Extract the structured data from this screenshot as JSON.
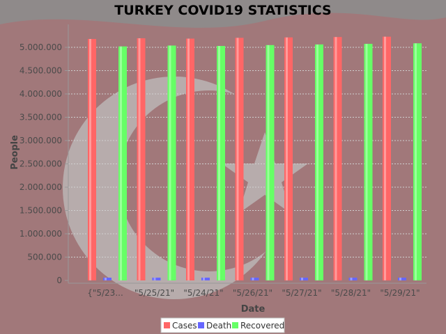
{
  "chart_data": {
    "type": "bar",
    "title": "TURKEY COVID19 STATISTICS",
    "xlabel": "Date",
    "ylabel": "People",
    "ylim": [
      0,
      5000000
    ],
    "yticks": [
      "0",
      "500.000",
      "1.000.000",
      "1.500.000",
      "2.000.000",
      "2.500.000",
      "3.000.000",
      "3.500.000",
      "4.000.000",
      "4.500.000",
      "5.000.000"
    ],
    "categories": [
      "{\"5/23...",
      "\"5/25/21\"",
      "\"5/24/21\"",
      "\"5/26/21\"",
      "\"5/27/21\"",
      "\"5/28/21\"",
      "\"5/29/21\""
    ],
    "grid": true,
    "legend_position": "bottom",
    "series": [
      {
        "name": "Cases",
        "color": "#ff6666",
        "values": [
          5178648,
          5194220,
          5186487,
          5203385,
          5212123,
          5220549,
          5228322
        ]
      },
      {
        "name": "Death",
        "color": "#6666ff",
        "values": [
          46268,
          46621,
          46446,
          46795,
          46970,
          47134,
          47271
        ]
      },
      {
        "name": "Recovered",
        "color": "#66ff66",
        "values": [
          5019081,
          5038013,
          5028602,
          5047694,
          5061216,
          5075148,
          5085905
        ]
      }
    ]
  }
}
